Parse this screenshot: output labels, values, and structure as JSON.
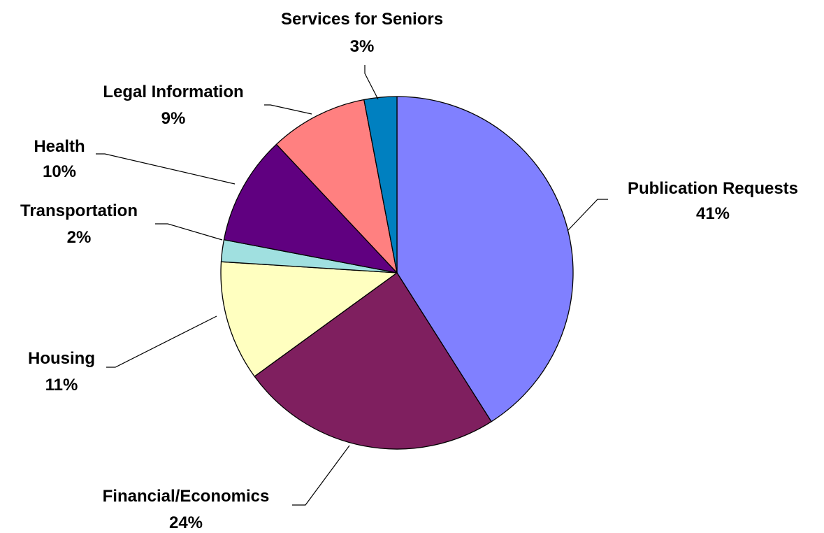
{
  "chart_data": {
    "type": "pie",
    "title": "",
    "slices": [
      {
        "label": "Publication Requests",
        "value": 41,
        "value_label": "41%",
        "color": "#8080FF"
      },
      {
        "label": "Financial/Economics",
        "value": 24,
        "value_label": "24%",
        "color": "#7F1F5F"
      },
      {
        "label": "Housing",
        "value": 11,
        "value_label": "11%",
        "color": "#FFFFC0"
      },
      {
        "label": "Transportation",
        "value": 2,
        "value_label": "2%",
        "color": "#A0E0E0"
      },
      {
        "label": "Health",
        "value": 10,
        "value_label": "10%",
        "color": "#600080"
      },
      {
        "label": "Legal Information",
        "value": 9,
        "value_label": "9%",
        "color": "#FF8080"
      },
      {
        "label": "Services for Seniors",
        "value": 3,
        "value_label": "3%",
        "color": "#0080C0"
      }
    ],
    "start_angle": "12 o'clock",
    "direction": "clockwise",
    "legend": "none",
    "data_labels": "outside with leader lines"
  }
}
